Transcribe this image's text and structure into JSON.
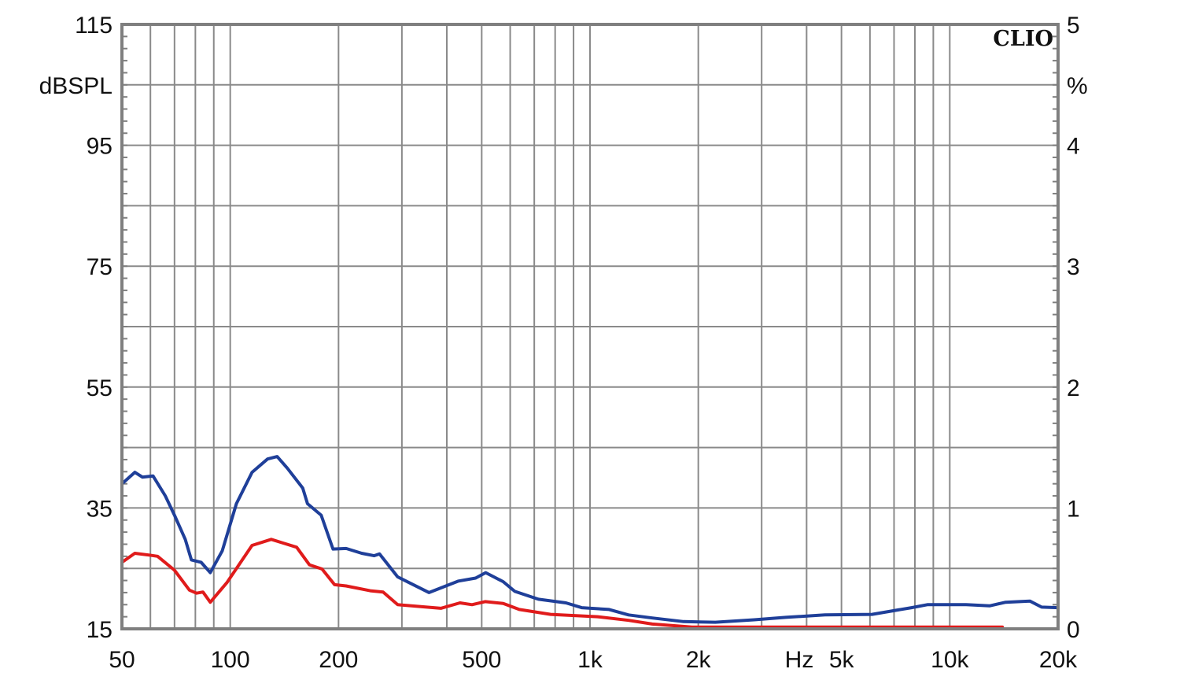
{
  "chart_data": {
    "type": "line",
    "title": "",
    "brand": "CLIO",
    "xlabel": "Hz",
    "ylabel": "dBSPL",
    "y2label": "%",
    "x_scale": "log",
    "xlim": [
      50,
      20000
    ],
    "ylim": [
      15,
      115
    ],
    "y2lim": [
      0,
      5
    ],
    "grid": true,
    "legend": null,
    "x_ticks": [
      {
        "value": 50,
        "label": "50"
      },
      {
        "value": 100,
        "label": "100"
      },
      {
        "value": 200,
        "label": "200"
      },
      {
        "value": 500,
        "label": "500"
      },
      {
        "value": 1000,
        "label": "1k"
      },
      {
        "value": 2000,
        "label": "2k"
      },
      {
        "value": 5000,
        "label": "5k"
      },
      {
        "value": 10000,
        "label": "10k"
      },
      {
        "value": 20000,
        "label": "20k"
      }
    ],
    "x_unit_label": {
      "value": 3700,
      "label": "Hz"
    },
    "x_gridlines": [
      60,
      70,
      80,
      90,
      100,
      200,
      300,
      400,
      500,
      600,
      700,
      800,
      900,
      1000,
      2000,
      3000,
      4000,
      5000,
      6000,
      7000,
      8000,
      9000,
      10000
    ],
    "y_ticks": [
      {
        "value": 115,
        "label": "115"
      },
      {
        "value": 95,
        "label": "95"
      },
      {
        "value": 75,
        "label": "75"
      },
      {
        "value": 55,
        "label": "55"
      },
      {
        "value": 35,
        "label": "35"
      },
      {
        "value": 15,
        "label": "15"
      }
    ],
    "y_unit_label": {
      "value": 105,
      "label": "dBSPL"
    },
    "y_gridlines": [
      105,
      95,
      85,
      75,
      65,
      55,
      45,
      35,
      25
    ],
    "y2_ticks": [
      {
        "value": 5,
        "label": "5"
      },
      {
        "value": 4,
        "label": "4"
      },
      {
        "value": 3,
        "label": "3"
      },
      {
        "value": 2,
        "label": "2"
      },
      {
        "value": 1,
        "label": "1"
      },
      {
        "value": 0,
        "label": "0"
      }
    ],
    "y2_unit_label": {
      "value": 4.5,
      "label": "%"
    },
    "series": [
      {
        "name": "blue",
        "color": "#1f3f99",
        "x": [
          50,
          54.3,
          57,
          61,
          66,
          70,
          75,
          78,
          83,
          88,
          95,
          104,
          115,
          127,
          135,
          144,
          159,
          164,
          179,
          193,
          210,
          232,
          251,
          260,
          292,
          357,
          431,
          481,
          513,
          574,
          618,
          719,
          857,
          948,
          1130,
          1280,
          1490,
          1820,
          2230,
          2860,
          3500,
          4500,
          6080,
          7830,
          8660,
          11100,
          12900,
          14300,
          16700,
          18000,
          20000
        ],
        "y": [
          39.0,
          40.9,
          40.1,
          40.3,
          37.0,
          33.8,
          29.8,
          26.4,
          26.0,
          24.3,
          27.9,
          35.7,
          40.9,
          43.1,
          43.5,
          41.6,
          38.3,
          35.7,
          33.8,
          28.2,
          28.3,
          27.5,
          27.1,
          27.4,
          23.6,
          21.0,
          22.9,
          23.4,
          24.3,
          22.8,
          21.2,
          19.9,
          19.3,
          18.5,
          18.2,
          17.3,
          16.8,
          16.2,
          16.1,
          16.5,
          16.9,
          17.3,
          17.4,
          18.5,
          19.0,
          19.0,
          18.8,
          19.4,
          19.6,
          18.6,
          18.5
        ]
      },
      {
        "name": "red",
        "color": "#e01b1b",
        "x": [
          50,
          54.3,
          59.6,
          62.8,
          70,
          77,
          80.6,
          84,
          88,
          98,
          115,
          130,
          140,
          153,
          166,
          180,
          195,
          210,
          245,
          266,
          292,
          385,
          435,
          470,
          511,
          574,
          636,
          777,
          1050,
          1280,
          1490,
          1920,
          3500,
          14000
        ],
        "y": [
          26.0,
          27.5,
          27.2,
          27.0,
          24.7,
          21.4,
          20.9,
          21.1,
          19.4,
          22.7,
          28.8,
          29.8,
          29.2,
          28.5,
          25.6,
          24.9,
          22.3,
          22.1,
          21.3,
          21.1,
          19.0,
          18.4,
          19.3,
          19.0,
          19.5,
          19.2,
          18.2,
          17.4,
          17.0,
          16.4,
          15.8,
          15.3,
          15.3,
          15.3
        ]
      }
    ],
    "colors": {
      "grid": "#8a8a8a",
      "frame": "#7f7f7f",
      "text": "#111111"
    }
  }
}
